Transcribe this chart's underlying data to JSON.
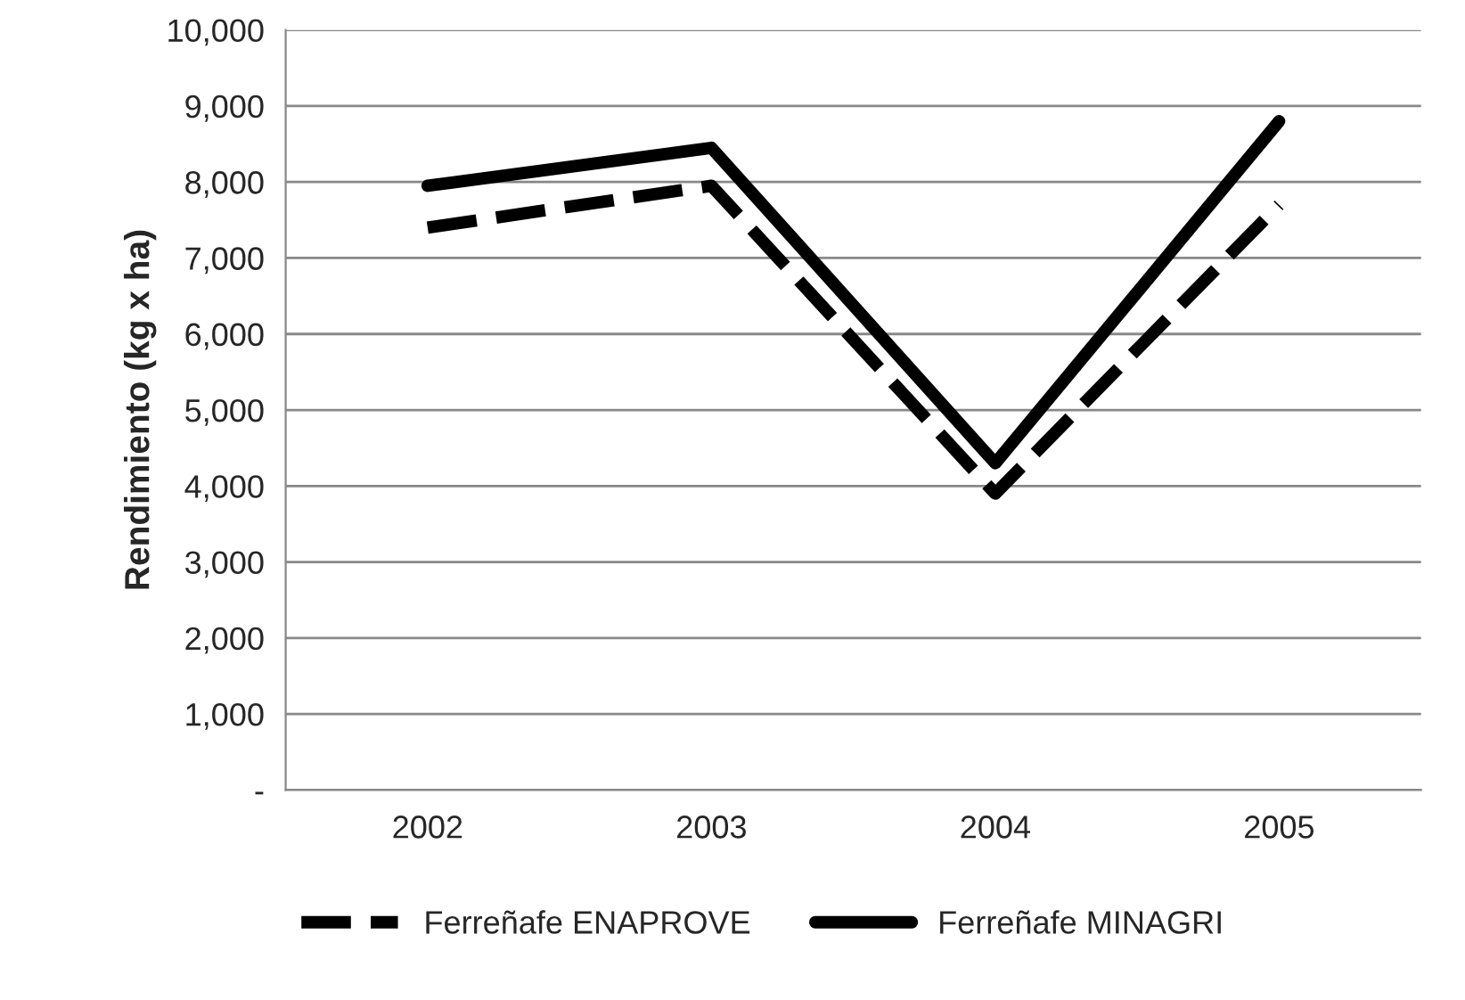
{
  "chart_data": {
    "type": "line",
    "ylabel": "Rendimiento (kg x ha)",
    "categories": [
      "2002",
      "2003",
      "2004",
      "2005"
    ],
    "series": [
      {
        "name": "Ferreñafe ENAPROVE",
        "color": "#000000",
        "line_style": "dashed",
        "values": [
          7400,
          7950,
          3900,
          7700
        ]
      },
      {
        "name": "Ferreñafe MINAGRI",
        "color": "#000000",
        "line_style": "solid",
        "values": [
          7950,
          8450,
          4300,
          8800
        ]
      }
    ],
    "ylim": [
      0,
      10000
    ],
    "yticks": [
      {
        "value": 0,
        "label": "-"
      },
      {
        "value": 1000,
        "label": "1,000"
      },
      {
        "value": 2000,
        "label": "2,000"
      },
      {
        "value": 3000,
        "label": "3,000"
      },
      {
        "value": 4000,
        "label": "4,000"
      },
      {
        "value": 5000,
        "label": "5,000"
      },
      {
        "value": 6000,
        "label": "6,000"
      },
      {
        "value": 7000,
        "label": "7,000"
      },
      {
        "value": 8000,
        "label": "8,000"
      },
      {
        "value": 9000,
        "label": "9,000"
      },
      {
        "value": 10000,
        "label": "10,000"
      }
    ],
    "grid": "y",
    "legend": "bottom",
    "marker": "none"
  }
}
